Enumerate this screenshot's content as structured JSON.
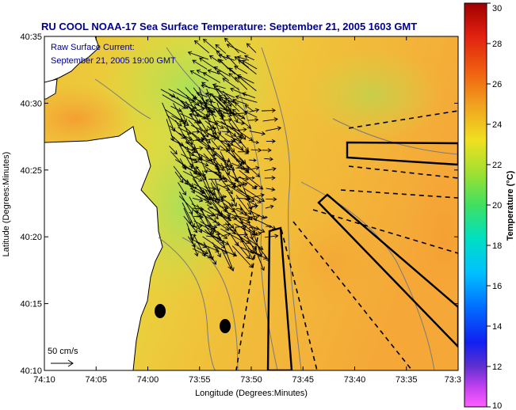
{
  "title": "RU COOL  NOAA-17  Sea Surface Temperature:  September 21, 2005 1603 GMT",
  "annotation": {
    "line1": "Raw Surface Current:",
    "line2": "September 21, 2005 19:00 GMT"
  },
  "scale_label": "50 cm/s",
  "chart_data": {
    "type": "heatmap",
    "title": "RU COOL  NOAA-17  Sea Surface Temperature:  September 21, 2005 1603 GMT",
    "xlabel": "Longitude (Degrees:Minutes)",
    "ylabel": "Latitude (Degrees:Minutes)",
    "x_ticks": [
      "74:10",
      "74:05",
      "74:00",
      "73:55",
      "73:50",
      "73:45",
      "73:40",
      "73:35",
      "73:3"
    ],
    "y_ticks": [
      "40:10",
      "40:15",
      "40:20",
      "40:25",
      "40:30",
      "40:35"
    ],
    "xlim_min": [
      -610,
      -570
    ],
    "ylim_min": [
      2410,
      2435
    ],
    "colorbar": {
      "label": "Temperature (°C)",
      "ticks": [
        "10",
        "12",
        "14",
        "16",
        "18",
        "20",
        "22",
        "24",
        "26",
        "28",
        "30"
      ],
      "range": [
        10,
        30
      ]
    },
    "sst_dominant_range": [
      20,
      24
    ]
  },
  "colors": {
    "title": "#000090",
    "sst_warm": "#f5a030",
    "sst_mid": "#e8d840",
    "sst_cool": "#a8e050",
    "land": "#ffffff",
    "vectors": "#000000"
  }
}
